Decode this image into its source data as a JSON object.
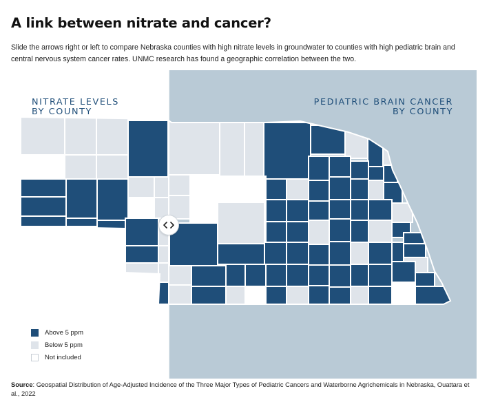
{
  "title": "A link between nitrate and cancer?",
  "description": "Slide the arrows right or left to compare Nebraska counties with high nitrate levels in groundwater to counties with high pediatric brain and central nervous system cancer rates. UNMC research has found a geographic correlation between the two.",
  "map": {
    "left_label": [
      "NITRATE LEVELS",
      "BY COUNTY"
    ],
    "right_label": [
      "PEDIATRIC BRAIN CANCER",
      "BY COUNTY"
    ],
    "slider_icon": "left-right-chevrons-icon"
  },
  "legend": [
    {
      "label": "Above 5 ppm",
      "color": "#1f4e79"
    },
    {
      "label": "Below 5 ppm",
      "color": "#dfe4ea"
    },
    {
      "label": "Not included",
      "color": "#ffffff"
    }
  ],
  "colors": {
    "panel": "#b9cad6",
    "above": "#1f4e79",
    "below": "#dfe4ea",
    "excluded": "#ffffff",
    "label": "#1f4e79"
  },
  "source": {
    "label": "Source",
    "text": ": Geospatial Distribution of Age-Adjusted Incidence of the Three Major Types of Pediatric Cancers and Waterborne Agrichemicals in Nebraska, Ouattara et al., 2022"
  }
}
